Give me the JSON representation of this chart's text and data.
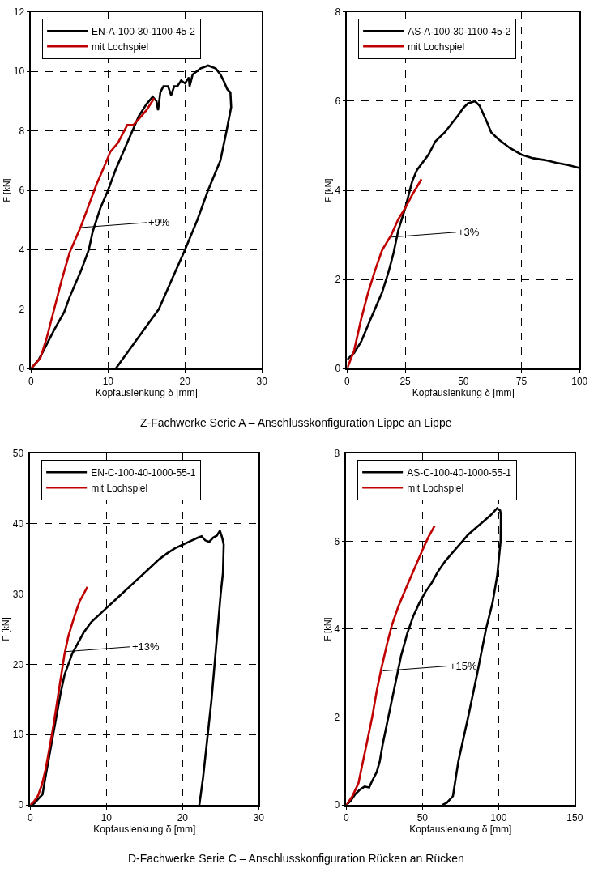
{
  "chart_data": [
    {
      "type": "line",
      "xlabel": "Kopfauslenkung δ [mm]",
      "ylabel": "F [kN]",
      "xlim": [
        0,
        30
      ],
      "xticks": [
        0,
        10,
        20,
        30
      ],
      "ylim": [
        0,
        12
      ],
      "yticks": [
        0,
        2,
        4,
        6,
        8,
        10,
        12
      ],
      "grid": true,
      "legend": "top left",
      "marker": "none",
      "line_style": "solid",
      "series": [
        {
          "name": "EN-A-100-30-1100-45-2",
          "color": "#000000",
          "x": [
            0,
            1,
            2,
            3,
            4.3,
            5,
            6.5,
            7.5,
            8,
            9,
            10,
            11,
            12,
            13,
            14,
            15,
            15.8,
            16.3,
            16.5,
            16.8,
            17.2,
            17.8,
            18.2,
            18.6,
            19,
            19.5,
            20,
            20.5,
            20.6,
            21,
            22,
            23,
            24,
            24.6,
            25,
            25.5,
            25.9,
            26,
            25.4,
            24.6,
            23,
            21.6,
            20,
            18.3,
            16.6,
            13.8,
            11
          ],
          "values": [
            0,
            0.3,
            0.8,
            1.3,
            1.9,
            2.4,
            3.3,
            4,
            4.6,
            5.4,
            6,
            6.7,
            7.3,
            7.9,
            8.5,
            8.9,
            9.15,
            9.0,
            8.7,
            9.3,
            9.5,
            9.5,
            9.2,
            9.5,
            9.5,
            9.7,
            9.6,
            9.8,
            9.5,
            9.9,
            10.1,
            10.2,
            10.1,
            9.9,
            9.7,
            9.4,
            9.3,
            8.8,
            8,
            7,
            6,
            5,
            4,
            3,
            2,
            1,
            0
          ]
        },
        {
          "name": "mit Lochspiel",
          "color": "#c00000",
          "x": [
            0,
            1.2,
            2,
            3,
            4,
            5,
            6.5,
            7.5,
            8.5,
            9.5,
            10.3,
            11.3,
            12.5,
            13.3,
            14,
            15,
            16
          ],
          "values": [
            0,
            0.35,
            1,
            2,
            3,
            3.9,
            4.8,
            5.5,
            6.2,
            6.8,
            7.3,
            7.6,
            8.2,
            8.2,
            8.4,
            8.7,
            9.1
          ]
        }
      ],
      "annotations": [
        {
          "text": "+9%",
          "x": 6.6,
          "y": 4.75
        },
        "Z-Fachwerke Serie A – Anschlusskonfiguration Lippe an Lippe"
      ]
    },
    {
      "type": "line",
      "xlabel": "Kopfauslenkung δ [mm]",
      "ylabel": "F [kN]",
      "xlim": [
        0,
        100
      ],
      "xticks": [
        0,
        25,
        50,
        75,
        100
      ],
      "ylim": [
        0,
        8
      ],
      "yticks": [
        0,
        2,
        4,
        6,
        8
      ],
      "grid": true,
      "legend": "top left",
      "marker": "none",
      "line_style": "solid",
      "series": [
        {
          "name": "AS-A-100-30-1100-45-2",
          "color": "#000000",
          "x": [
            0,
            3,
            6,
            10,
            15,
            18,
            20,
            22,
            25,
            28,
            30,
            35,
            38,
            42,
            45,
            48,
            50,
            52,
            55,
            57,
            60,
            62,
            65,
            70,
            75,
            80,
            85,
            90,
            95,
            100
          ],
          "values": [
            0.2,
            0.35,
            0.6,
            1.1,
            1.7,
            2.2,
            2.6,
            3.1,
            3.6,
            4.2,
            4.45,
            4.8,
            5.1,
            5.3,
            5.5,
            5.7,
            5.85,
            5.95,
            6.0,
            5.9,
            5.55,
            5.3,
            5.15,
            4.95,
            4.8,
            4.72,
            4.68,
            4.62,
            4.57,
            4.5
          ]
        },
        {
          "name": "mit Lochspiel",
          "color": "#c00000",
          "x": [
            0,
            3,
            6,
            9,
            12,
            15,
            19,
            22,
            25,
            28,
            32
          ],
          "values": [
            0,
            0.4,
            1.1,
            1.7,
            2.2,
            2.65,
            3.0,
            3.35,
            3.6,
            3.9,
            4.25
          ]
        }
      ],
      "annotations": [
        {
          "text": "+3%",
          "x": 19,
          "y": 2.95
        }
      ]
    },
    {
      "type": "line",
      "xlabel": "Kopfauslenkung δ [mm]",
      "ylabel": "F [kN]",
      "xlim": [
        0,
        30
      ],
      "xticks": [
        0,
        10,
        20,
        30
      ],
      "ylim": [
        0,
        50
      ],
      "yticks": [
        0,
        10,
        20,
        30,
        40,
        50
      ],
      "grid": true,
      "legend": "top left",
      "marker": "none",
      "line_style": "solid",
      "series": [
        {
          "name": "EN-C-100-40-1000-55-1",
          "color": "#000000",
          "x": [
            0,
            0.5,
            1,
            1.6,
            2,
            2.5,
            3,
            3.5,
            4,
            4.5,
            5,
            5.5,
            6,
            7,
            8,
            9,
            10,
            11,
            12,
            13,
            14,
            15,
            16,
            17,
            18,
            19,
            20,
            21,
            22,
            22.5,
            23,
            23.5,
            24,
            24.5,
            24.9,
            25.2,
            25.4,
            25.3,
            25,
            24.6,
            24.2,
            23.8,
            23.3,
            22.7,
            22.2
          ],
          "values": [
            0,
            0.2,
            0.8,
            1.5,
            4,
            7,
            10,
            13,
            16,
            18.5,
            20,
            21.5,
            22.5,
            24.5,
            26,
            27,
            28,
            29,
            30,
            31,
            32,
            33,
            34,
            35,
            35.8,
            36.5,
            37,
            37.5,
            38,
            38.2,
            37.6,
            37.4,
            38,
            38.3,
            39,
            38,
            37,
            33,
            30,
            25,
            20,
            15,
            10,
            4,
            0
          ]
        },
        {
          "name": "mit Lochspiel",
          "color": "#c00000",
          "x": [
            0,
            0.5,
            1,
            1.5,
            2,
            2.5,
            3,
            3.5,
            4,
            4.5,
            5,
            5.5,
            6,
            6.5,
            7,
            7.5
          ],
          "values": [
            0,
            0.5,
            1.3,
            2.8,
            5,
            8,
            11,
            14.5,
            18,
            21.5,
            24,
            25.8,
            27.5,
            29,
            30,
            31
          ]
        }
      ],
      "annotations": [
        {
          "text": "+13%",
          "x": 4.6,
          "y": 21.8
        },
        "D-Fachwerke Serie C – Anschlusskonfiguration Rücken an Rücken"
      ]
    },
    {
      "type": "line",
      "xlabel": "Kopfauslenkung δ [mm]",
      "ylabel": "F [kN]",
      "xlim": [
        0,
        150
      ],
      "xticks": [
        0,
        50,
        100,
        150
      ],
      "ylim": [
        0,
        8
      ],
      "yticks": [
        0,
        2,
        4,
        6,
        8
      ],
      "grid": true,
      "legend": "top left",
      "marker": "none",
      "line_style": "solid",
      "series": [
        {
          "name": "AS-C-100-40-1000-55-1",
          "color": "#000000",
          "x": [
            0,
            3,
            6,
            9,
            12,
            15,
            17,
            20,
            22,
            24,
            27,
            30,
            33,
            36,
            40,
            44,
            48,
            52,
            56,
            60,
            65,
            70,
            75,
            80,
            85,
            90,
            95,
            99,
            101,
            101.5,
            101.3,
            99,
            96,
            91.7,
            86,
            80,
            73.6,
            70,
            66,
            63
          ],
          "values": [
            0,
            0.1,
            0.25,
            0.35,
            0.42,
            0.4,
            0.55,
            0.75,
            1.0,
            1.4,
            1.9,
            2.4,
            2.9,
            3.4,
            3.9,
            4.3,
            4.6,
            4.85,
            5.05,
            5.3,
            5.55,
            5.75,
            5.95,
            6.15,
            6.3,
            6.45,
            6.6,
            6.75,
            6.7,
            6.6,
            6,
            5.2,
            4.6,
            4,
            3,
            2,
            1,
            0.2,
            0.05,
            0
          ]
        },
        {
          "name": "mit Lochspiel",
          "color": "#c00000",
          "x": [
            0,
            4,
            8,
            11,
            14,
            17,
            20,
            23,
            27,
            30,
            34,
            40,
            45,
            50,
            54,
            58
          ],
          "values": [
            0,
            0.2,
            0.5,
            1,
            1.5,
            2.0,
            2.6,
            3.1,
            3.7,
            4.1,
            4.5,
            5.0,
            5.4,
            5.8,
            6.1,
            6.35
          ]
        }
      ],
      "annotations": [
        {
          "text": "+15%",
          "x": 24,
          "y": 3.05
        }
      ]
    }
  ]
}
